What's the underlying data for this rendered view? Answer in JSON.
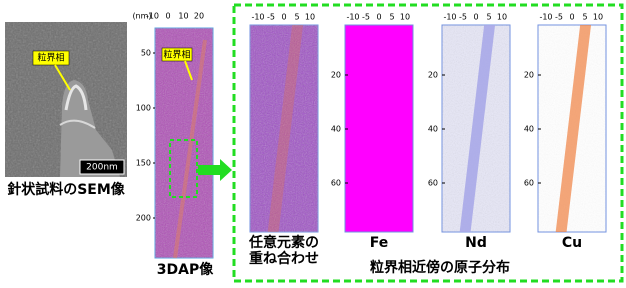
{
  "sem": {
    "callout": "粒界相",
    "scale_bar": "200nm",
    "caption": "針状試料のSEM像"
  },
  "dap": {
    "unit": "(nm)",
    "xticks": [
      -10,
      0,
      10,
      20
    ],
    "yticks": [
      50,
      100,
      150,
      200
    ],
    "callout": "粒界相",
    "caption": "3DAP像"
  },
  "maps": {
    "xticks": [
      -10,
      -5,
      0,
      5,
      10
    ],
    "yticks": [
      20,
      40,
      60
    ],
    "panels": [
      {
        "label": [
          "任意元素の",
          "重ね合わせ"
        ]
      },
      {
        "label": [
          "Fe"
        ]
      },
      {
        "label": [
          "Nd"
        ]
      },
      {
        "label": [
          "Cu"
        ]
      }
    ],
    "caption": "粒界相近傍の原子分布"
  }
}
